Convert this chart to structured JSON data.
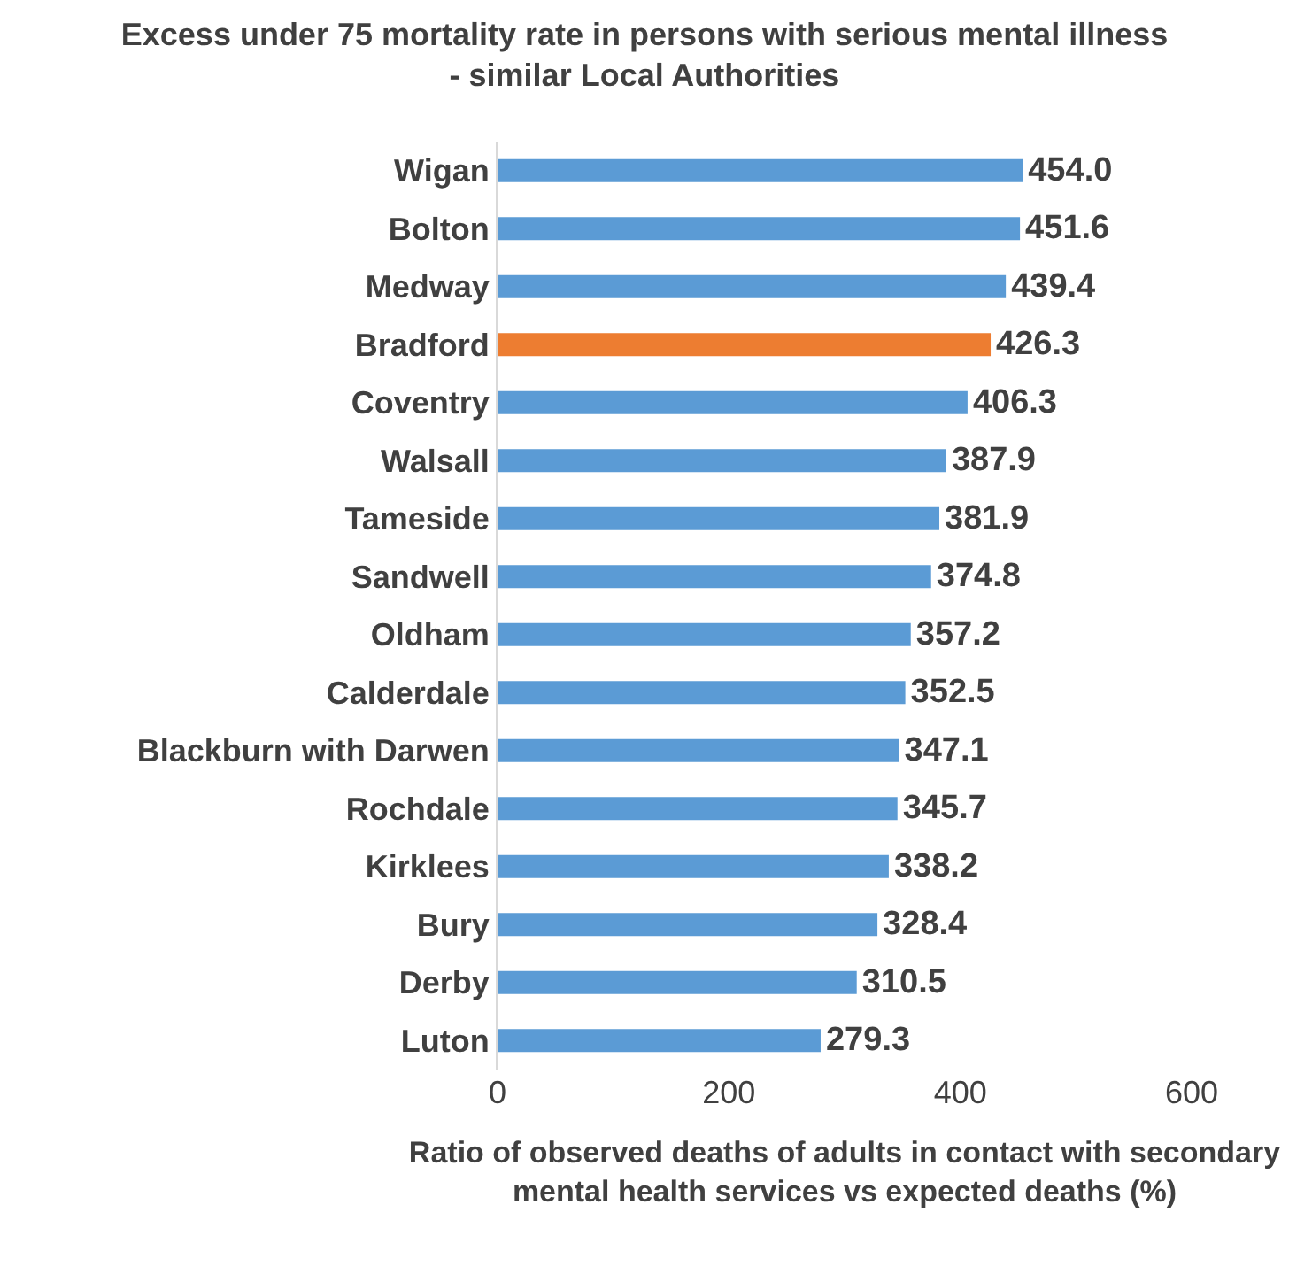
{
  "chart_data": {
    "type": "bar",
    "orientation": "horizontal",
    "title": "Excess under 75 mortality rate in persons with serious mental illness\n- similar Local Authorities",
    "xlabel": "Ratio of observed deaths of adults in contact with secondary\nmental health services vs expected deaths (%)",
    "categories": [
      "Wigan",
      "Bolton",
      "Medway",
      "Bradford",
      "Coventry",
      "Walsall",
      "Tameside",
      "Sandwell",
      "Oldham",
      "Calderdale",
      "Blackburn with Darwen",
      "Rochdale",
      "Kirklees",
      "Bury",
      "Derby",
      "Luton"
    ],
    "values": [
      454.0,
      451.6,
      439.4,
      426.3,
      406.3,
      387.9,
      381.9,
      374.8,
      357.2,
      352.5,
      347.1,
      345.7,
      338.2,
      328.4,
      310.5,
      279.3
    ],
    "value_labels": [
      "454.0",
      "451.6",
      "439.4",
      "426.3",
      "406.3",
      "387.9",
      "381.9",
      "374.8",
      "357.2",
      "352.5",
      "347.1",
      "345.7",
      "338.2",
      "328.4",
      "310.5",
      "279.3"
    ],
    "colors": [
      "#5b9bd5",
      "#5b9bd5",
      "#5b9bd5",
      "#ed7d31",
      "#5b9bd5",
      "#5b9bd5",
      "#5b9bd5",
      "#5b9bd5",
      "#5b9bd5",
      "#5b9bd5",
      "#5b9bd5",
      "#5b9bd5",
      "#5b9bd5",
      "#5b9bd5",
      "#5b9bd5",
      "#5b9bd5"
    ],
    "xlim": [
      0,
      600
    ],
    "xticks": [
      0,
      200,
      400,
      600
    ]
  }
}
